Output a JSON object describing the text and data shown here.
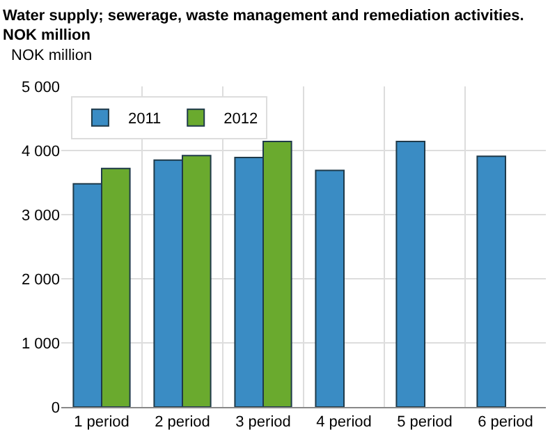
{
  "chart_data": {
    "type": "bar",
    "title": "Water supply; sewerage, waste management and remediation activities. NOK million",
    "ylabel": "NOK million",
    "categories": [
      "1 period",
      "2 period",
      "3 period",
      "4 period",
      "5 period",
      "6 period"
    ],
    "series": [
      {
        "name": "2011",
        "color": "#3a8cc4",
        "values": [
          3480,
          3850,
          3890,
          3690,
          4140,
          3910
        ]
      },
      {
        "name": "2012",
        "color": "#6aaa2e",
        "values": [
          3720,
          3920,
          4140,
          null,
          null,
          null
        ]
      }
    ],
    "ylim": [
      0,
      5000
    ],
    "yticks": [
      {
        "value": 0,
        "label": "0"
      },
      {
        "value": 1000,
        "label": "1 000"
      },
      {
        "value": 2000,
        "label": "2 000"
      },
      {
        "value": 3000,
        "label": "3 000"
      },
      {
        "value": 4000,
        "label": "4 000"
      },
      {
        "value": 5000,
        "label": "5 000"
      }
    ],
    "grid": true,
    "legend": "top left"
  }
}
